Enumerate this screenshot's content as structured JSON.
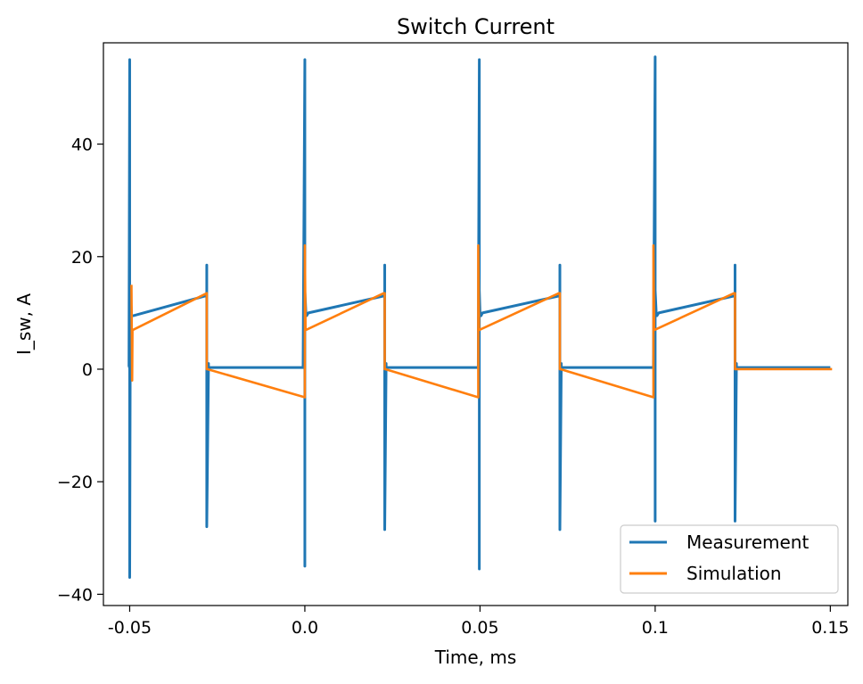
{
  "chart_data": {
    "type": "line",
    "title": "Switch Current",
    "xlabel": "Time, ms",
    "ylabel": "I_sw, A",
    "xlim": [
      -0.0575,
      0.155
    ],
    "ylim": [
      -42,
      58
    ],
    "xticks": [
      -0.05,
      0.0,
      0.05,
      0.1,
      0.15
    ],
    "xtick_labels": [
      "-0.05",
      "0.0",
      "0.05",
      "0.1",
      "0.15"
    ],
    "yticks": [
      -40,
      -20,
      0,
      20,
      40
    ],
    "ytick_labels": [
      "−40",
      "−20",
      "0",
      "20",
      "40"
    ],
    "grid": false,
    "legend": "lower-right",
    "colors": {
      "measurement": "#1f77b4",
      "simulation": "#ff7f0e"
    },
    "series": [
      {
        "name": "Measurement",
        "color": "#1f77b4",
        "x": [
          -0.0505,
          -0.0502,
          -0.05,
          -0.05,
          -0.0498,
          -0.0495,
          -0.0495,
          -0.049,
          -0.0285,
          -0.028,
          -0.028,
          -0.028,
          -0.0275,
          -0.0275,
          -0.027,
          -0.0005,
          0.0,
          0.0,
          0.0,
          0.0003,
          0.0005,
          0.0005,
          0.001,
          0.0225,
          0.0228,
          0.0228,
          0.0228,
          0.0232,
          0.0232,
          0.0235,
          0.0495,
          0.0498,
          0.0498,
          0.0498,
          0.05,
          0.0503,
          0.0503,
          0.0507,
          0.0725,
          0.0728,
          0.0728,
          0.0728,
          0.0732,
          0.0732,
          0.0735,
          0.0995,
          0.1,
          0.1,
          0.1,
          0.1003,
          0.1005,
          0.1005,
          0.101,
          0.1225,
          0.1228,
          0.1228,
          0.1228,
          0.1232,
          0.1232,
          0.1235,
          0.15
        ],
        "y": [
          0.5,
          0.5,
          55,
          -37,
          14,
          10,
          9.5,
          9.5,
          13,
          13,
          18.5,
          -28,
          1,
          0,
          0.3,
          0.3,
          55,
          -35,
          14,
          10,
          9.5,
          9.5,
          10,
          13,
          13,
          18.5,
          -28.5,
          1,
          0,
          0.3,
          0.3,
          55,
          -35.5,
          14,
          10,
          9.5,
          9.5,
          10,
          13,
          13,
          18.5,
          -28.5,
          1,
          0,
          0.3,
          0.3,
          55.5,
          -27,
          14,
          10,
          9.5,
          9.5,
          10,
          13,
          13,
          18.5,
          -27,
          1,
          0,
          0.3,
          0.3
        ]
      },
      {
        "name": "Simulation",
        "color": "#ff7f0e",
        "x": [
          -0.0495,
          -0.0493,
          -0.0492,
          -0.049,
          -0.028,
          -0.028,
          -0.0278,
          0.0,
          0.0,
          0.0002,
          0.0004,
          0.0225,
          0.0228,
          0.0228,
          0.023,
          0.0495,
          0.0495,
          0.0497,
          0.0499,
          0.0725,
          0.0728,
          0.0728,
          0.073,
          0.0995,
          0.0995,
          0.0997,
          0.0999,
          0.1225,
          0.1228,
          0.1228,
          0.123,
          0.1505
        ],
        "y": [
          15,
          -2,
          7,
          7,
          13.5,
          0,
          0,
          -5,
          22,
          7,
          7,
          13.5,
          13.5,
          0,
          0,
          -5,
          22,
          7,
          7,
          13.5,
          13.5,
          0,
          0,
          -5,
          22,
          7,
          7,
          13.5,
          13.5,
          0,
          0,
          0
        ]
      }
    ]
  }
}
